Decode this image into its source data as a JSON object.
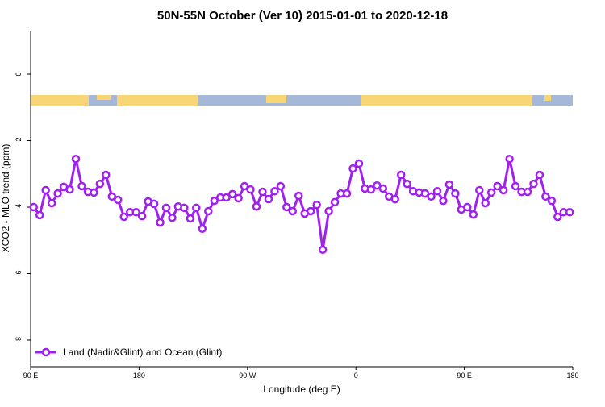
{
  "chart_data": {
    "type": "line",
    "title": "50N-55N October (Ver 10)   2015-01-01 to 2020-12-18",
    "xlabel": "Longitude (deg E)",
    "ylabel": "XCO2 - MLO trend (ppm)",
    "x": [
      92.5,
      97.5,
      102.5,
      107.5,
      112.5,
      117.5,
      122.5,
      127.5,
      132.5,
      137.5,
      142.5,
      147.5,
      152.5,
      157.5,
      162.5,
      167.5,
      172.5,
      177.5,
      182.5,
      187.5,
      192.5,
      197.5,
      202.5,
      207.5,
      212.5,
      217.5,
      222.5,
      227.5,
      232.5,
      237.5,
      242.5,
      247.5,
      252.5,
      257.5,
      262.5,
      267.5,
      272.5,
      277.5,
      282.5,
      287.5,
      292.5,
      297.5,
      302.5,
      307.5,
      312.5,
      317.5,
      322.5,
      327.5,
      332.5,
      337.5,
      342.5,
      347.5,
      352.5,
      357.5,
      362.5,
      367.5,
      372.5,
      377.5,
      382.5,
      387.5,
      392.5,
      397.5,
      402.5,
      407.5,
      412.5,
      417.5,
      422.5,
      427.5,
      432.5,
      437.5,
      442.5,
      447.5,
      452.5,
      457.5,
      462.5,
      467.5,
      472.5,
      477.5,
      482.5,
      487.5,
      492.5,
      497.5,
      502.5,
      507.5,
      512.5,
      517.5,
      522.5,
      527.5,
      532.5,
      537.5
    ],
    "series": [
      {
        "name": "Land (Nadir&Glint) and Ocean (Glint)",
        "color": "#a020f0",
        "values": [
          -4.0,
          -4.24,
          -3.49,
          -3.88,
          -3.59,
          -3.39,
          -3.47,
          -2.55,
          -3.37,
          -3.54,
          -3.56,
          -3.3,
          -3.03,
          -3.68,
          -3.78,
          -4.29,
          -4.15,
          -4.15,
          -4.27,
          -3.83,
          -3.9,
          -4.46,
          -4.02,
          -4.32,
          -3.98,
          -4.02,
          -4.34,
          -4.02,
          -4.65,
          -4.12,
          -3.81,
          -3.71,
          -3.71,
          -3.61,
          -3.73,
          -3.37,
          -3.47,
          -3.98,
          -3.54,
          -3.76,
          -3.52,
          -3.37,
          -4.0,
          -4.12,
          -3.66,
          -4.19,
          -4.12,
          -3.93,
          -5.28,
          -4.12,
          -3.85,
          -3.59,
          -3.59,
          -2.84,
          -2.69,
          -3.44,
          -3.47,
          -3.35,
          -3.44,
          -3.68,
          -3.76,
          -3.03,
          -3.3,
          -3.52,
          -3.56,
          -3.59,
          -3.68,
          -3.52,
          -3.81,
          -3.32,
          -3.59,
          -4.07,
          -4.0,
          -4.22,
          -3.49,
          -3.88,
          -3.56,
          -3.37,
          -3.49,
          -2.55,
          -3.37,
          -3.54,
          -3.54,
          -3.3,
          -3.03,
          -3.68,
          -3.81,
          -4.29,
          -4.15,
          -4.15
        ]
      }
    ],
    "xlim": [
      90,
      540
    ],
    "xticks": [
      {
        "value": 90,
        "label": "90 E"
      },
      180,
      {
        "value": 270,
        "label": "90 W"
      },
      {
        "value": 360,
        "label": "0"
      },
      {
        "value": 450,
        "label": "90 E"
      },
      {
        "value": 540,
        "label": "180"
      }
    ],
    "ylim": [
      -8.8,
      1.31
    ],
    "yticks": [
      0,
      -2,
      -4,
      -6,
      -8
    ],
    "legend": "bottom-left"
  }
}
